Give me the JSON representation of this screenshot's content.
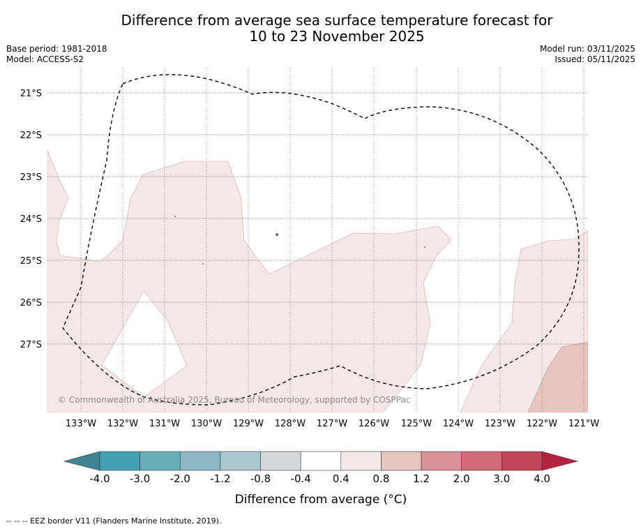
{
  "title_line1": "Difference from average sea surface temperature forecast for",
  "title_line2": "10 to 23 November 2025",
  "base_period": "Base period: 1981-2018",
  "model": "Model: ACCESS-S2",
  "model_run": "Model run: 03/11/2025",
  "issued": "Issued: 05/11/2025",
  "lat_labels": [
    "21°S",
    "22°S",
    "23°S",
    "24°S",
    "25°S",
    "26°S",
    "27°S"
  ],
  "lon_labels": [
    "133°W",
    "132°W",
    "131°W",
    "130°W",
    "129°W",
    "128°W",
    "127°W",
    "126°W",
    "125°W",
    "124°W",
    "123°W",
    "122°W",
    "121°W"
  ],
  "copyright": "© Commonwealth of Australia 2025, Bureau of Meteorology, supported by COSPPac",
  "colorbar": {
    "ticks": [
      "-4.0",
      "-3.0",
      "-2.0",
      "-1.2",
      "-0.8",
      "-0.4",
      "0.4",
      "0.8",
      "1.2",
      "2.0",
      "3.0",
      "4.0"
    ],
    "colors": [
      "#3d8593",
      "#45a0b1",
      "#69acb9",
      "#8db9c4",
      "#aac7ce",
      "#d3d9dd",
      "#ffffff",
      "#f5e8e7",
      "#e8c4c1",
      "#d9919a",
      "#cf6b74",
      "#c2465a",
      "#b32240"
    ],
    "label": "Difference from average (°C)"
  },
  "legend_footnote": "-- -- -- EEZ border V11 (Flanders Marine Institute, 2019).",
  "chart_data": {
    "type": "map",
    "variable": "Sea surface temperature anomaly",
    "units": "°C",
    "lat_range": [
      "28.6°S",
      "20.4°S"
    ],
    "lon_range": [
      "133.8°W",
      "120.9°W"
    ],
    "fill_classes": [
      {
        "range": "0.4 to 0.8",
        "color": "#f5e8e7",
        "extent": "most of domain west and south"
      },
      {
        "range": "0.8 to 1.2",
        "color": "#e8c4c1",
        "extent": "far south-east corner"
      }
    ]
  }
}
